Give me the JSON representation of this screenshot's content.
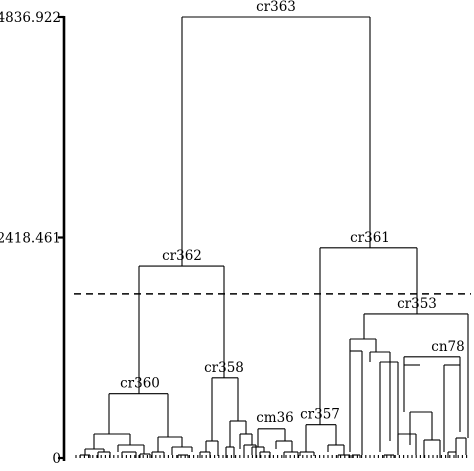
{
  "axis": {
    "ticks": [
      {
        "value": 0,
        "label": "0"
      },
      {
        "value": 2418.461,
        "label": "2418.461"
      },
      {
        "value": 4836.922,
        "label": "4836.922"
      }
    ],
    "ymax": 4836.922
  },
  "threshold": {
    "value": 1800
  },
  "node_labels": [
    {
      "id": "cr363",
      "text": "cr363"
    },
    {
      "id": "cr362",
      "text": "cr362"
    },
    {
      "id": "cr361",
      "text": "cr361"
    },
    {
      "id": "cr360",
      "text": "cr360"
    },
    {
      "id": "cr358",
      "text": "cr358"
    },
    {
      "id": "cm36",
      "text": "cm36"
    },
    {
      "id": "cr357",
      "text": "cr357"
    },
    {
      "id": "cr353",
      "text": "cr353"
    },
    {
      "id": "cn78",
      "text": "cn78"
    }
  ],
  "merge_heights": {
    "cr363": 4836.922,
    "cr362": 2105,
    "cr361": 2305,
    "cr360": 705,
    "cr358": 880,
    "cm36": 320,
    "cr357": 365,
    "cr353": 1580,
    "cn78": 1110
  }
}
